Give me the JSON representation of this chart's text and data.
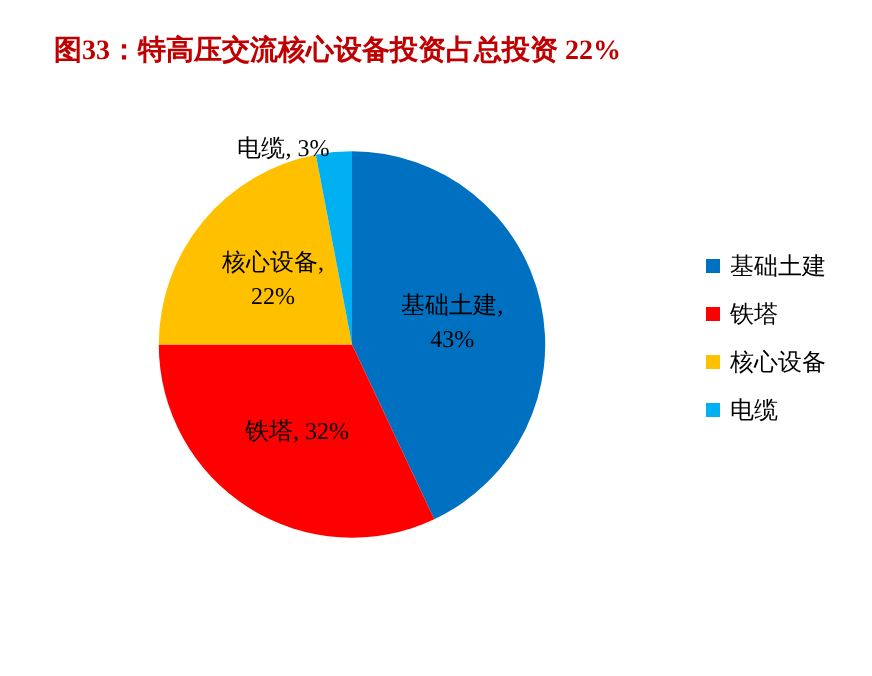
{
  "chart_data": {
    "type": "pie",
    "title": "图33：特高压交流核心设备投资占总投资 22%",
    "categories": [
      "基础土建",
      "铁塔",
      "核心设备",
      "电缆"
    ],
    "values": [
      43,
      32,
      22,
      3
    ],
    "value_labels": [
      "基础土建,\n43%",
      "铁塔, 32%",
      "核心设备,\n22%",
      "电缆, 3%"
    ],
    "colors": [
      "#0070c0",
      "#ff0000",
      "#ffc000",
      "#00b0f0"
    ],
    "legend": "right"
  }
}
